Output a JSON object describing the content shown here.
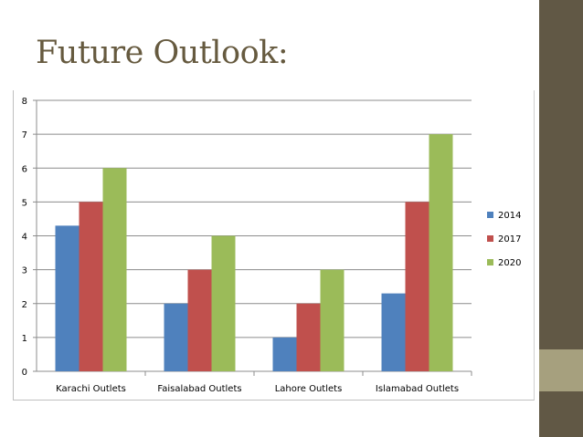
{
  "slide": {
    "title": "Future Outlook:"
  },
  "colors": {
    "sidebar": "#615845",
    "sidebar_accent": "#a6a07e",
    "title": "#665a3f"
  },
  "chart_data": {
    "type": "bar",
    "title": "",
    "xlabel": "",
    "ylabel": "",
    "categories": [
      "Karachi Outlets",
      "Faisalabad Outlets",
      "Lahore Outlets",
      "Islamabad Outlets"
    ],
    "series": [
      {
        "name": "2014",
        "color": "#4f81bd",
        "values": [
          4.3,
          2,
          1,
          2.3
        ]
      },
      {
        "name": "2017",
        "color": "#c0504d",
        "values": [
          5,
          3,
          2,
          5
        ]
      },
      {
        "name": "2020",
        "color": "#9bbb59",
        "values": [
          6,
          4,
          3,
          7
        ]
      }
    ],
    "ylim": [
      0,
      8
    ],
    "yticks": [
      0,
      1,
      2,
      3,
      4,
      5,
      6,
      7,
      8
    ],
    "grid": true,
    "legend": "right"
  }
}
